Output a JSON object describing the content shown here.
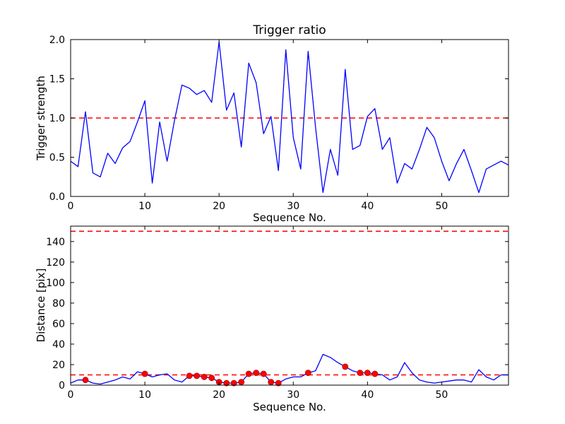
{
  "figure": {
    "background": "#ffffff",
    "frame_color": "#000000",
    "tick_label_color": "#000000"
  },
  "chart_data": [
    {
      "type": "line",
      "name": "trigger-ratio-chart",
      "title": "Trigger ratio",
      "xlabel": "Sequence No.",
      "ylabel": "Trigger strength",
      "xlim": [
        0,
        59
      ],
      "ylim": [
        0.0,
        2.0
      ],
      "xticks": [
        0,
        10,
        20,
        30,
        40,
        50
      ],
      "xtick_labels": [
        "0",
        "10",
        "20",
        "30",
        "40",
        "50"
      ],
      "yticks": [
        0.0,
        0.5,
        1.0,
        1.5,
        2.0
      ],
      "ytick_labels": [
        "0.0",
        "0.5",
        "1.0",
        "1.5",
        "2.0"
      ],
      "line_color": "#0000ff",
      "grid": false,
      "hlines": [
        {
          "y": 1.0,
          "color": "#ff0000",
          "style": "dashed"
        }
      ],
      "x": [
        0,
        1,
        2,
        3,
        4,
        5,
        6,
        7,
        8,
        9,
        10,
        11,
        12,
        13,
        14,
        15,
        16,
        17,
        18,
        19,
        20,
        21,
        22,
        23,
        24,
        25,
        26,
        27,
        28,
        29,
        30,
        31,
        32,
        33,
        34,
        35,
        36,
        37,
        38,
        39,
        40,
        41,
        42,
        43,
        44,
        45,
        46,
        47,
        48,
        49,
        50,
        51,
        52,
        53,
        54,
        55,
        56,
        57,
        58,
        59
      ],
      "y": [
        0.45,
        0.38,
        1.08,
        0.3,
        0.25,
        0.55,
        0.42,
        0.62,
        0.7,
        0.95,
        1.22,
        0.17,
        0.95,
        0.45,
        0.97,
        1.42,
        1.38,
        1.3,
        1.35,
        1.2,
        1.97,
        1.1,
        1.32,
        0.63,
        1.7,
        1.45,
        0.8,
        1.02,
        0.33,
        1.87,
        0.75,
        0.35,
        1.85,
        0.88,
        0.05,
        0.6,
        0.27,
        1.62,
        0.6,
        0.65,
        1.02,
        1.12,
        0.6,
        0.75,
        0.17,
        0.42,
        0.35,
        0.6,
        0.88,
        0.75,
        0.45,
        0.2,
        0.42,
        0.6,
        0.33,
        0.05,
        0.35,
        0.4,
        0.45,
        0.4
      ]
    },
    {
      "type": "line",
      "name": "distance-chart",
      "title": "",
      "xlabel": "Sequence No.",
      "ylabel": "Distance [pix]",
      "xlim": [
        0,
        59
      ],
      "ylim": [
        0,
        155
      ],
      "xticks": [
        0,
        10,
        20,
        30,
        40,
        50
      ],
      "xtick_labels": [
        "0",
        "10",
        "20",
        "30",
        "40",
        "50"
      ],
      "yticks": [
        0,
        20,
        40,
        60,
        80,
        100,
        120,
        140
      ],
      "ytick_labels": [
        "0",
        "20",
        "40",
        "60",
        "80",
        "100",
        "120",
        "140"
      ],
      "line_color": "#0000ff",
      "grid": false,
      "hlines": [
        {
          "y": 150,
          "color": "#ff0000",
          "style": "dashed"
        },
        {
          "y": 10,
          "color": "#ff0000",
          "style": "dashed"
        }
      ],
      "x": [
        0,
        1,
        2,
        3,
        4,
        5,
        6,
        7,
        8,
        9,
        10,
        11,
        12,
        13,
        14,
        15,
        16,
        17,
        18,
        19,
        20,
        21,
        22,
        23,
        24,
        25,
        26,
        27,
        28,
        29,
        30,
        31,
        32,
        33,
        34,
        35,
        36,
        37,
        38,
        39,
        40,
        41,
        42,
        43,
        44,
        45,
        46,
        47,
        48,
        49,
        50,
        51,
        52,
        53,
        54,
        55,
        56,
        57,
        58,
        59
      ],
      "y": [
        2,
        5,
        5,
        2,
        1,
        3,
        5,
        8,
        6,
        13,
        11,
        8,
        10,
        11,
        5,
        3,
        9,
        9,
        8,
        7,
        3,
        2,
        2,
        3,
        11,
        12,
        11,
        3,
        2,
        6,
        8,
        8,
        12,
        14,
        30,
        27,
        22,
        18,
        14,
        12,
        12,
        11,
        10,
        5,
        8,
        22,
        12,
        5,
        3,
        2,
        3,
        4,
        5,
        5,
        3,
        15,
        8,
        5,
        10,
        10
      ],
      "markers": {
        "color": "#ff0000",
        "edge_color": "#aa0000",
        "x": [
          2,
          10,
          16,
          17,
          18,
          19,
          20,
          21,
          22,
          23,
          24,
          25,
          26,
          27,
          28,
          32,
          37,
          39,
          40,
          41
        ],
        "y": [
          5,
          11,
          9,
          9,
          8,
          7,
          3,
          2,
          2,
          3,
          11,
          12,
          11,
          3,
          2,
          12,
          18,
          12,
          12,
          11
        ]
      }
    }
  ]
}
